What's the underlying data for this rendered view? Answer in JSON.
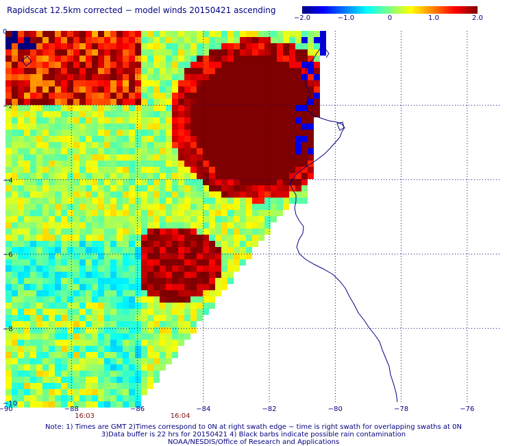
{
  "title": "Rapidscat 12.5km corrected − model winds 20150421 ascending",
  "colorbar": {
    "labels": [
      "−2.0",
      "−1.0",
      "0",
      "1.0",
      "2.0"
    ],
    "min": -2.0,
    "max": 2.0,
    "colors": [
      "#00007f",
      "#0000ff",
      "#0080ff",
      "#00ffff",
      "#80ff80",
      "#ffff00",
      "#ff8000",
      "#ff0000",
      "#7f0000"
    ]
  },
  "map": {
    "lon_range": [
      -90,
      -75
    ],
    "lat_range": [
      0,
      -10
    ],
    "lon_ticks": [
      "−90",
      "−88",
      "−86",
      "−84",
      "−82",
      "−80",
      "−78",
      "−76"
    ],
    "lat_ticks": [
      "0",
      "−2",
      "−4",
      "−6",
      "−8",
      "−10"
    ],
    "swath_times": [
      "16:03",
      "16:04"
    ],
    "coast_color": "#000080",
    "grid_color": "#000080"
  },
  "footer": {
    "line1": "Note: 1) Times are GMT 2)Times correspond to 0N at right swath edge − time is right swath for overlapping swaths at 0N",
    "line2": "3)Data buffer is 22 hrs for 20150421 4) Black barbs indicate possible rain contamination",
    "line3": "NOAA/NESDIS/Office of Research and Applications"
  }
}
